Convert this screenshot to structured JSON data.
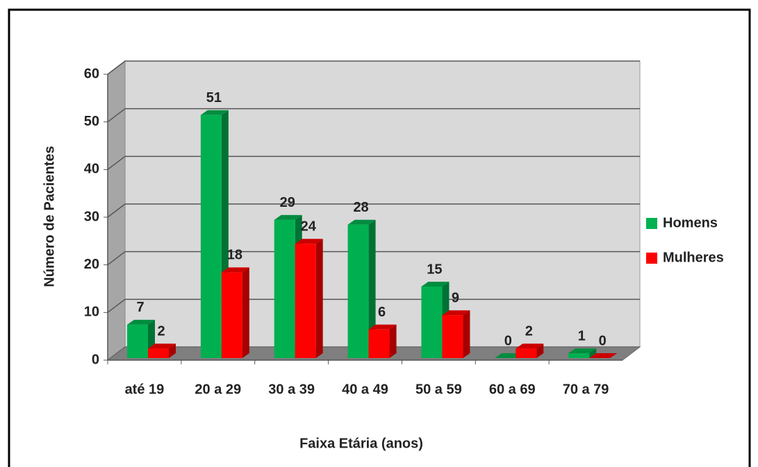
{
  "chart_data": {
    "type": "bar3d",
    "x_label": "Faixa Etária (anos)",
    "y_label": "Número de Pacientes",
    "categories": [
      "até 19",
      "20 a 29",
      "30 a 39",
      "40 a 49",
      "50 a 59",
      "60 a 69",
      "70 a 79"
    ],
    "series": [
      {
        "name": "Homens",
        "color": "#00b050",
        "values": [
          7,
          51,
          29,
          28,
          15,
          0,
          1
        ]
      },
      {
        "name": "Mulheres",
        "color": "#ff0000",
        "values": [
          2,
          18,
          24,
          6,
          9,
          2,
          0
        ]
      }
    ],
    "ylim": [
      0,
      60
    ],
    "yticks": [
      0,
      10,
      20,
      30,
      40,
      50,
      60
    ],
    "grid": true,
    "legend": "right"
  }
}
